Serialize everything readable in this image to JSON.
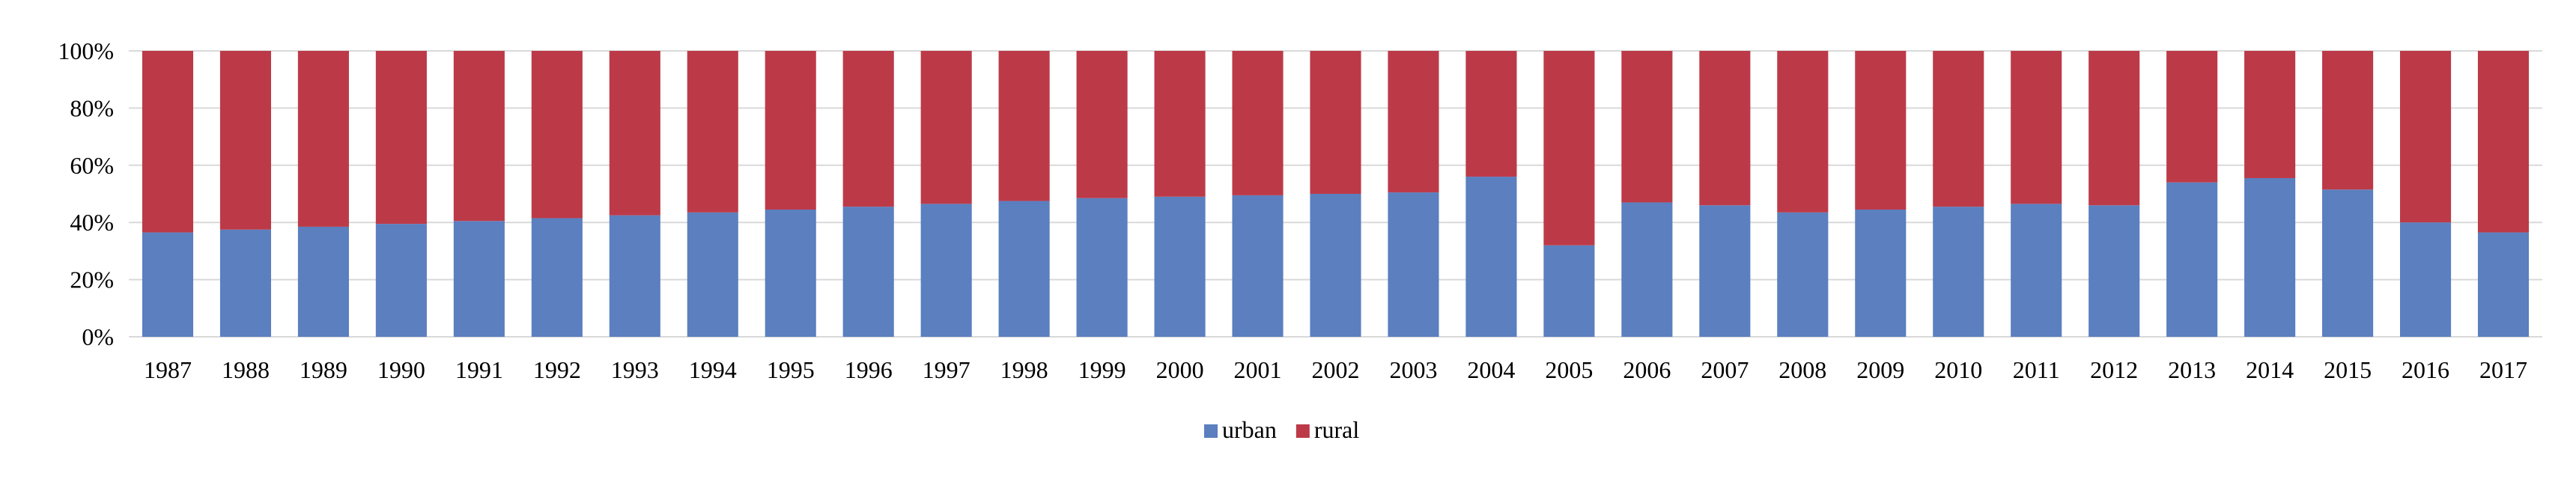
{
  "chart_data": {
    "type": "bar",
    "stacked": true,
    "percent": true,
    "categories": [
      "1987",
      "1988",
      "1989",
      "1990",
      "1991",
      "1992",
      "1993",
      "1994",
      "1995",
      "1996",
      "1997",
      "1998",
      "1999",
      "2000",
      "2001",
      "2002",
      "2003",
      "2004",
      "2005",
      "2006",
      "2007",
      "2008",
      "2009",
      "2010",
      "2011",
      "2012",
      "2013",
      "2014",
      "2015",
      "2016",
      "2017"
    ],
    "series": [
      {
        "name": "urban",
        "color": "#5b7fbf",
        "values": [
          36.5,
          37.5,
          38.5,
          39.5,
          40.5,
          41.5,
          42.5,
          43.5,
          44.5,
          45.5,
          46.5,
          47.5,
          48.5,
          49,
          49.5,
          50,
          50.5,
          56,
          32,
          47,
          46,
          43.5,
          44.5,
          45.5,
          46.5,
          46,
          54,
          55.5,
          51.5,
          40,
          36.5
        ]
      },
      {
        "name": "rural",
        "color": "#bc3a48",
        "values": [
          63.5,
          62.5,
          61.5,
          60.5,
          59.5,
          58.5,
          57.5,
          56.5,
          55.5,
          54.5,
          53.5,
          52.5,
          51.5,
          51,
          50.5,
          50,
          49.5,
          44,
          68,
          53,
          54,
          56.5,
          55.5,
          54.5,
          53.5,
          54,
          46,
          44.5,
          48.5,
          60,
          63.5
        ]
      }
    ],
    "y_ticks": [
      "0%",
      "20%",
      "40%",
      "60%",
      "80%",
      "100%"
    ],
    "ylim": [
      0,
      100
    ],
    "grid": true,
    "legend_position": "bottom-center",
    "title": "",
    "xlabel": "",
    "ylabel": ""
  }
}
